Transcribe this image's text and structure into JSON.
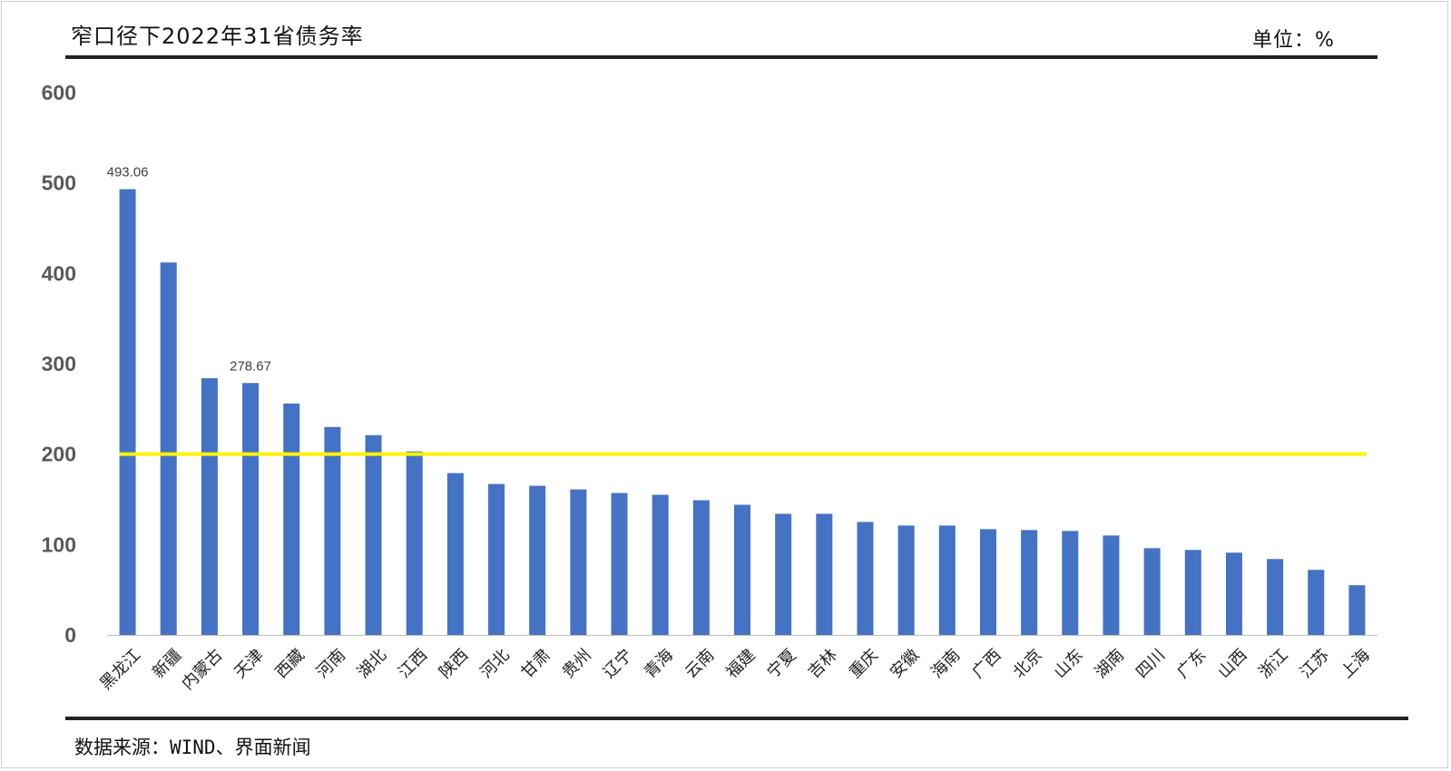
{
  "header": {
    "title": "窄口径下2022年31省债务率",
    "unit": "单位：%"
  },
  "footer": {
    "source": "数据来源：WIND、界面新闻"
  },
  "colors": {
    "bar": "#4472C4",
    "reference_line": "#FFF200",
    "axis": "#BFBFBF",
    "rule": "#222222"
  },
  "chart_data": {
    "type": "bar",
    "title": "窄口径下2022年31省债务率",
    "xlabel": "",
    "ylabel": "",
    "ylim": [
      0,
      600
    ],
    "yticks": [
      0,
      100,
      200,
      300,
      400,
      500,
      600
    ],
    "grid": false,
    "legend": "none",
    "reference_line": {
      "value": 200
    },
    "categories": [
      "黑龙江",
      "新疆",
      "内蒙古",
      "天津",
      "西藏",
      "河南",
      "湖北",
      "江西",
      "陕西",
      "河北",
      "甘肃",
      "贵州",
      "辽宁",
      "青海",
      "云南",
      "福建",
      "宁夏",
      "吉林",
      "重庆",
      "安徽",
      "海南",
      "广西",
      "北京",
      "山东",
      "湖南",
      "四川",
      "广东",
      "山西",
      "浙江",
      "江苏",
      "上海"
    ],
    "values": [
      493.06,
      412,
      284,
      278.67,
      256,
      230,
      221,
      203,
      179,
      167,
      165,
      161,
      157,
      155,
      149,
      144,
      134,
      134,
      125,
      121,
      121,
      117,
      116,
      115,
      110,
      96,
      94,
      91,
      84,
      72,
      55
    ],
    "data_labels": [
      {
        "index": 0,
        "text": "493.06"
      },
      {
        "index": 3,
        "text": "278.67"
      }
    ]
  }
}
